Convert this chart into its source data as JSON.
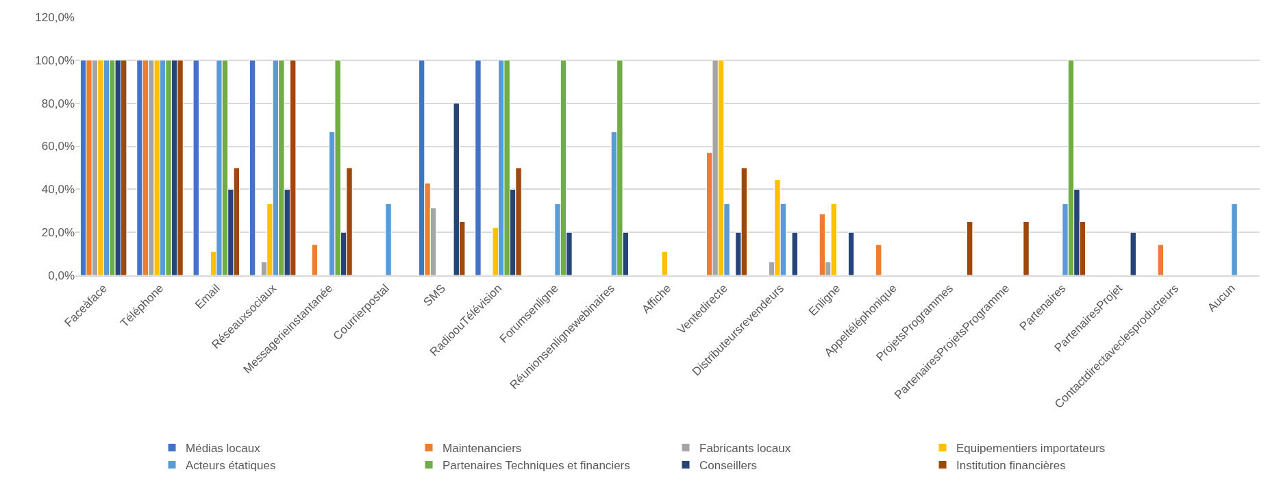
{
  "chart_data": {
    "type": "bar",
    "categories": [
      "Faceàface",
      "Téléphone",
      "Email",
      "Réseauxsociaux",
      "Messagerieinstantanée",
      "Courrierpostal",
      "SMS",
      "RadioouTélévision",
      "Forumsenligne",
      "Réunionsenlignewebinaires",
      "Affiche",
      "Ventedirecte",
      "Distributeursrevendeurs",
      "Enligne",
      "Appeltéléphonique",
      "ProjetsProgrammes",
      "PartenairesProjetsProgramme",
      "Partenaires",
      "PartenairesProjet",
      "Contactdirectaveclesproducteurs",
      "Aucun"
    ],
    "series": [
      {
        "name": "Médias locaux",
        "color": "#4472c4",
        "values": [
          100,
          100,
          100,
          100,
          null,
          null,
          100,
          100,
          null,
          null,
          null,
          null,
          null,
          null,
          null,
          null,
          null,
          null,
          null,
          null,
          null
        ]
      },
      {
        "name": "Maintenanciers",
        "color": "#ed7d31",
        "values": [
          100,
          100,
          null,
          null,
          14.3,
          null,
          42.9,
          null,
          null,
          null,
          null,
          57.1,
          null,
          28.6,
          14.3,
          null,
          null,
          null,
          null,
          14.3,
          null
        ]
      },
      {
        "name": "Fabricants locaux",
        "color": "#a5a5a5",
        "values": [
          100,
          100,
          null,
          6.3,
          null,
          null,
          31.3,
          null,
          null,
          null,
          null,
          100,
          6.3,
          6.3,
          null,
          null,
          null,
          null,
          null,
          null,
          null
        ]
      },
      {
        "name": "Equipementiers importateurs",
        "color": "#ffc000",
        "values": [
          100,
          100,
          11.1,
          33.3,
          null,
          null,
          null,
          22.2,
          null,
          null,
          11.1,
          100,
          44.4,
          33.3,
          null,
          null,
          null,
          null,
          null,
          null,
          null
        ]
      },
      {
        "name": "Acteurs étatiques",
        "color": "#5b9bd5",
        "values": [
          100,
          100,
          100,
          100,
          66.7,
          33.3,
          null,
          100,
          33.3,
          66.7,
          null,
          33.3,
          33.3,
          null,
          null,
          null,
          null,
          33.3,
          null,
          null,
          33.3
        ]
      },
      {
        "name": "Partenaires Techniques et financiers",
        "color": "#70ad47",
        "values": [
          100,
          100,
          100,
          100,
          100,
          null,
          null,
          100,
          100,
          100,
          null,
          null,
          null,
          null,
          null,
          null,
          null,
          100,
          null,
          null,
          null
        ]
      },
      {
        "name": "Conseillers",
        "color": "#264478",
        "values": [
          100,
          100,
          40,
          40,
          20,
          null,
          80,
          40,
          20,
          20,
          null,
          20,
          20,
          20,
          null,
          null,
          null,
          40,
          20,
          null,
          null
        ]
      },
      {
        "name": "Institution financières",
        "color": "#9e480e",
        "values": [
          100,
          100,
          50,
          100,
          50,
          null,
          25,
          50,
          null,
          null,
          null,
          50,
          null,
          null,
          null,
          25,
          25,
          25,
          null,
          null,
          null
        ]
      }
    ],
    "ylim": [
      0,
      120
    ],
    "yticks": [
      {
        "value": 0,
        "label": "0,0%"
      },
      {
        "value": 20,
        "label": "20,0%"
      },
      {
        "value": 40,
        "label": "40,0%"
      },
      {
        "value": 60,
        "label": "60,0%"
      },
      {
        "value": 80,
        "label": "80,0%"
      },
      {
        "value": 100,
        "label": "100,0%"
      },
      {
        "value": 120,
        "label": "120,0%"
      }
    ],
    "grid": "y",
    "legend": "bottom"
  }
}
